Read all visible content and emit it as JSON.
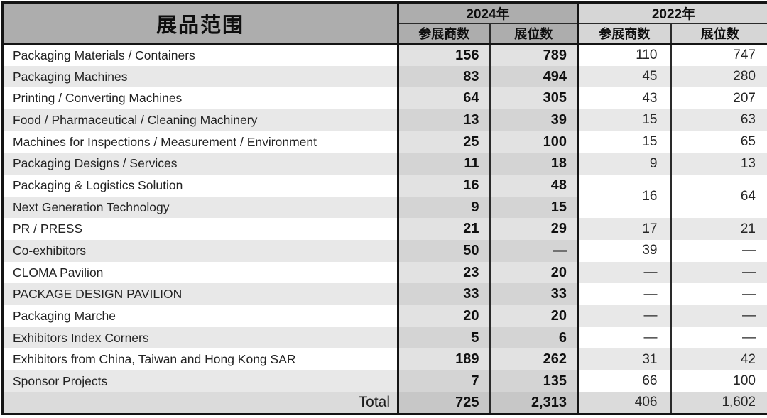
{
  "chart_data": {
    "type": "table",
    "title": "展品范围",
    "null_display": "—",
    "year_groups": [
      {
        "label": "2024年",
        "columns": [
          "参展商数",
          "展位数"
        ]
      },
      {
        "label": "2022年",
        "columns": [
          "参展商数",
          "展位数"
        ]
      }
    ],
    "rows": [
      {
        "label": "Packaging Materials / Containers",
        "y2024": [
          156,
          789
        ],
        "y2022": [
          110,
          747
        ]
      },
      {
        "label": "Packaging Machines",
        "y2024": [
          83,
          494
        ],
        "y2022": [
          45,
          280
        ]
      },
      {
        "label": "Printing / Converting Machines",
        "y2024": [
          64,
          305
        ],
        "y2022": [
          43,
          207
        ]
      },
      {
        "label": "Food / Pharmaceutical / Cleaning Machinery",
        "y2024": [
          13,
          39
        ],
        "y2022": [
          15,
          63
        ]
      },
      {
        "label": "Machines for Inspections / Measurement / Environment",
        "y2024": [
          25,
          100
        ],
        "y2022": [
          15,
          65
        ]
      },
      {
        "label": "Packaging Designs / Services",
        "y2024": [
          11,
          18
        ],
        "y2022": [
          9,
          13
        ]
      },
      {
        "label": "Packaging & Logistics Solution",
        "y2024": [
          16,
          48
        ],
        "y2022": [
          16,
          64
        ],
        "y2022_rowspan": 2
      },
      {
        "label": "Next Generation Technology",
        "y2024": [
          9,
          15
        ],
        "y2022": "merged-above"
      },
      {
        "label": "PR / PRESS",
        "y2024": [
          21,
          29
        ],
        "y2022": [
          17,
          21
        ]
      },
      {
        "label": "Co-exhibitors",
        "y2024": [
          50,
          null
        ],
        "y2022": [
          39,
          null
        ]
      },
      {
        "label": "CLOMA Pavilion",
        "y2024": [
          23,
          20
        ],
        "y2022": [
          null,
          null
        ]
      },
      {
        "label": "PACKAGE DESIGN PAVILION",
        "y2024": [
          33,
          33
        ],
        "y2022": [
          null,
          null
        ]
      },
      {
        "label": "Packaging Marche",
        "y2024": [
          20,
          20
        ],
        "y2022": [
          null,
          null
        ]
      },
      {
        "label": "Exhibitors Index Corners",
        "y2024": [
          5,
          6
        ],
        "y2022": [
          null,
          null
        ]
      },
      {
        "label": "Exhibitors from China, Taiwan and Hong Kong SAR",
        "y2024": [
          189,
          262
        ],
        "y2022": [
          31,
          42
        ]
      },
      {
        "label": "Sponsor Projects",
        "y2024": [
          7,
          135
        ],
        "y2022": [
          66,
          100
        ]
      }
    ],
    "total": {
      "label": "Total",
      "y2024": [
        725,
        2313
      ],
      "y2022": [
        406,
        1602
      ]
    },
    "layout_hints": {
      "merged_cells": "2022 columns merged vertically across 'Packaging & Logistics Solution' and 'Next Generation Technology' rows (16 exhibitors, 64 booths)",
      "bold_columns": "2024年 value columns are bold",
      "row_striping": "alternating white / light gray"
    }
  },
  "colors": {
    "border": "#141414",
    "thin_line": "#2a2a2a",
    "header_gray": "#adadad",
    "header_2022_gray": "#d6d6d6",
    "row_light": "#ffffff",
    "row_dark": "#e8e8e8",
    "row_2024_light": "#e2e2e2",
    "row_2024_dark": "#d4d4d4",
    "total_bg": "#dbdbdb",
    "total_2024_bg": "#c7c7c7"
  }
}
